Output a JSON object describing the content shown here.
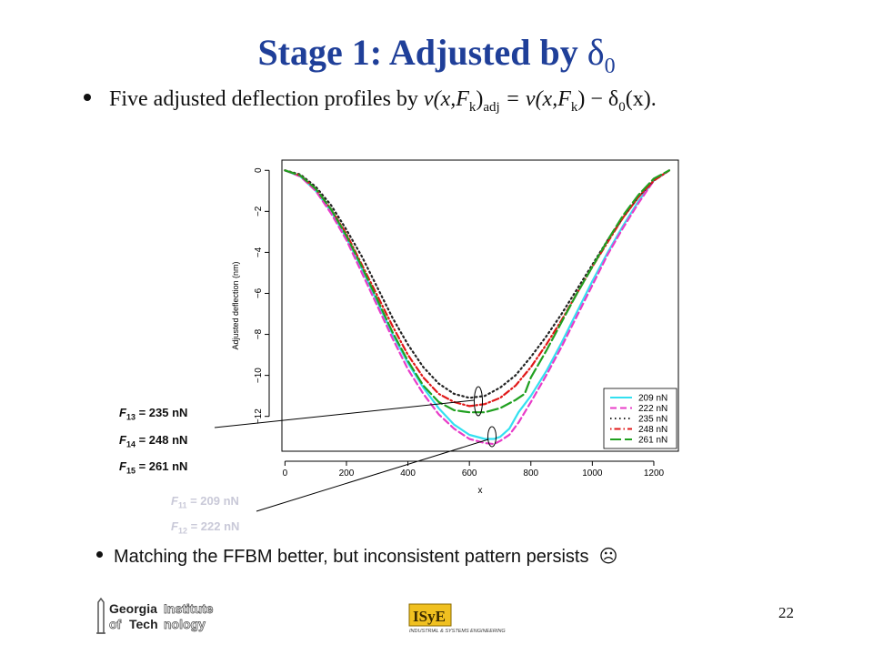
{
  "slide": {
    "title_main": "Stage 1: Adjusted by ",
    "title_symbol": "δ",
    "title_sub": "0",
    "bullet1_text": "Five adjusted deflection profiles by ",
    "bullet1_formula": "v(x,F",
    "bullet1_k": "k",
    "bullet1_mid": ")",
    "bullet1_adj": "adj",
    "bullet1_rhs": " = v(x,F",
    "bullet1_k2": "k",
    "bullet1_rhs2": ") − δ",
    "bullet1_zero": "0",
    "bullet1_end": "(x).",
    "bullet2": "Matching the FFBM better, but inconsistent pattern persists",
    "bullet2_symbol": "☹",
    "page_number": "22"
  },
  "force_labels": [
    {
      "F": "F",
      "sub": "13",
      "text": " = 235 nN"
    },
    {
      "F": "F",
      "sub": "14",
      "text": " = 248 nN"
    },
    {
      "F": "F",
      "sub": "15",
      "text": " = 261 nN"
    },
    {
      "F": "F",
      "sub": "11",
      "text": " = 209 nN"
    },
    {
      "F": "F",
      "sub": "12",
      "text": " = 222 nN"
    }
  ],
  "logos": {
    "gt_line1a": "Georgia",
    "gt_line1b": "Institute",
    "gt_line2a": "of ",
    "gt_line2b": "Tech",
    "gt_line2c": "nology",
    "isye_mark": "ISyE",
    "isye_caption": "INDUSTRIAL & SYSTEMS ENGINEERING"
  },
  "chart_data": {
    "type": "line",
    "xlabel": "x",
    "ylabel": "Adjusted deflection (nm)",
    "xlim": [
      -10,
      1280
    ],
    "ylim": [
      -13.7,
      0.5
    ],
    "xticks": [
      0,
      200,
      400,
      600,
      800,
      1000,
      1200
    ],
    "yticks": [
      0,
      -2,
      -4,
      -6,
      -8,
      -10,
      -12
    ],
    "legend_position": "bottom-right",
    "series": [
      {
        "name": "209 nN",
        "color": "#33e0f0",
        "style": "solid",
        "x": [
          0,
          50,
          100,
          150,
          200,
          250,
          300,
          350,
          400,
          450,
          500,
          550,
          600,
          650,
          680,
          700,
          730,
          760,
          800,
          850,
          900,
          950,
          1000,
          1050,
          1100,
          1150,
          1200,
          1250
        ],
        "y": [
          0,
          -0.3,
          -1.0,
          -2.0,
          -3.3,
          -4.8,
          -6.4,
          -8.0,
          -9.4,
          -10.6,
          -11.6,
          -12.4,
          -12.9,
          -13.1,
          -13.1,
          -13.0,
          -12.6,
          -11.8,
          -11.0,
          -9.8,
          -8.4,
          -6.9,
          -5.4,
          -4.0,
          -2.7,
          -1.5,
          -0.5,
          0
        ]
      },
      {
        "name": "222 nN",
        "color": "#e83cc8",
        "style": "dash",
        "x": [
          0,
          50,
          100,
          150,
          200,
          250,
          300,
          350,
          400,
          450,
          500,
          550,
          600,
          650,
          680,
          700,
          730,
          760,
          800,
          850,
          900,
          950,
          1000,
          1050,
          1100,
          1150,
          1200,
          1250
        ],
        "y": [
          0,
          -0.3,
          -1.0,
          -2.1,
          -3.4,
          -5.0,
          -6.6,
          -8.2,
          -9.7,
          -10.9,
          -11.9,
          -12.6,
          -13.1,
          -13.3,
          -13.35,
          -13.2,
          -12.9,
          -12.3,
          -11.3,
          -10.0,
          -8.6,
          -7.1,
          -5.6,
          -4.1,
          -2.8,
          -1.6,
          -0.5,
          0
        ]
      },
      {
        "name": "235 nN",
        "color": "#222222",
        "style": "dot",
        "x": [
          0,
          50,
          100,
          150,
          200,
          250,
          300,
          350,
          400,
          450,
          500,
          550,
          600,
          650,
          700,
          750,
          800,
          850,
          900,
          950,
          1000,
          1050,
          1100,
          1150,
          1200,
          1250
        ],
        "y": [
          0,
          -0.2,
          -0.8,
          -1.7,
          -2.9,
          -4.2,
          -5.7,
          -7.2,
          -8.5,
          -9.6,
          -10.4,
          -10.9,
          -11.1,
          -11.0,
          -10.6,
          -10.0,
          -9.1,
          -8.1,
          -7.0,
          -5.8,
          -4.6,
          -3.4,
          -2.3,
          -1.3,
          -0.5,
          0
        ]
      },
      {
        "name": "248 nN",
        "color": "#e01818",
        "style": "dotdash",
        "x": [
          0,
          50,
          100,
          150,
          200,
          250,
          300,
          350,
          400,
          450,
          500,
          550,
          600,
          650,
          700,
          750,
          800,
          850,
          900,
          950,
          1000,
          1050,
          1100,
          1150,
          1200,
          1250
        ],
        "y": [
          0,
          -0.25,
          -0.9,
          -1.9,
          -3.1,
          -4.6,
          -6.1,
          -7.6,
          -9.0,
          -10.1,
          -10.9,
          -11.3,
          -11.5,
          -11.4,
          -11.1,
          -10.5,
          -9.6,
          -8.5,
          -7.3,
          -6.0,
          -4.7,
          -3.5,
          -2.3,
          -1.3,
          -0.5,
          0
        ]
      },
      {
        "name": "261 nN",
        "color": "#20a020",
        "style": "longdash",
        "x": [
          0,
          50,
          100,
          150,
          200,
          250,
          300,
          350,
          400,
          450,
          500,
          550,
          600,
          650,
          700,
          750,
          780,
          800,
          850,
          900,
          950,
          1000,
          1050,
          1100,
          1150,
          1200,
          1250
        ],
        "y": [
          0,
          -0.25,
          -0.9,
          -1.9,
          -3.2,
          -4.7,
          -6.3,
          -7.9,
          -9.3,
          -10.5,
          -11.3,
          -11.7,
          -11.8,
          -11.8,
          -11.6,
          -11.2,
          -10.9,
          -10.1,
          -8.8,
          -7.4,
          -6.0,
          -4.7,
          -3.4,
          -2.2,
          -1.2,
          -0.4,
          0
        ]
      }
    ]
  }
}
